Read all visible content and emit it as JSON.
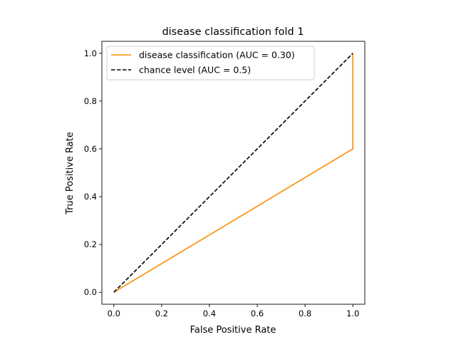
{
  "chart_data": {
    "type": "line",
    "title": "disease classification fold 1",
    "xlabel": "False Positive Rate",
    "ylabel": "True Positive Rate",
    "xlim": [
      -0.05,
      1.05
    ],
    "ylim": [
      -0.05,
      1.05
    ],
    "xticks": [
      0.0,
      0.2,
      0.4,
      0.6,
      0.8,
      1.0
    ],
    "yticks": [
      0.0,
      0.2,
      0.4,
      0.6,
      0.8,
      1.0
    ],
    "xtick_labels": [
      "0.0",
      "0.2",
      "0.4",
      "0.6",
      "0.8",
      "1.0"
    ],
    "ytick_labels": [
      "0.0",
      "0.2",
      "0.4",
      "0.6",
      "0.8",
      "1.0"
    ],
    "grid": false,
    "legend_placement": "upper-left",
    "series": [
      {
        "name": "disease classification (AUC = 0.30)",
        "color": "#ff8c00",
        "style": "solid",
        "x": [
          0.0,
          1.0,
          1.0
        ],
        "y": [
          0.0,
          0.6,
          1.0
        ]
      },
      {
        "name": "chance level (AUC = 0.5)",
        "color": "#000000",
        "style": "dashed",
        "x": [
          0.0,
          1.0
        ],
        "y": [
          0.0,
          1.0
        ]
      }
    ]
  }
}
